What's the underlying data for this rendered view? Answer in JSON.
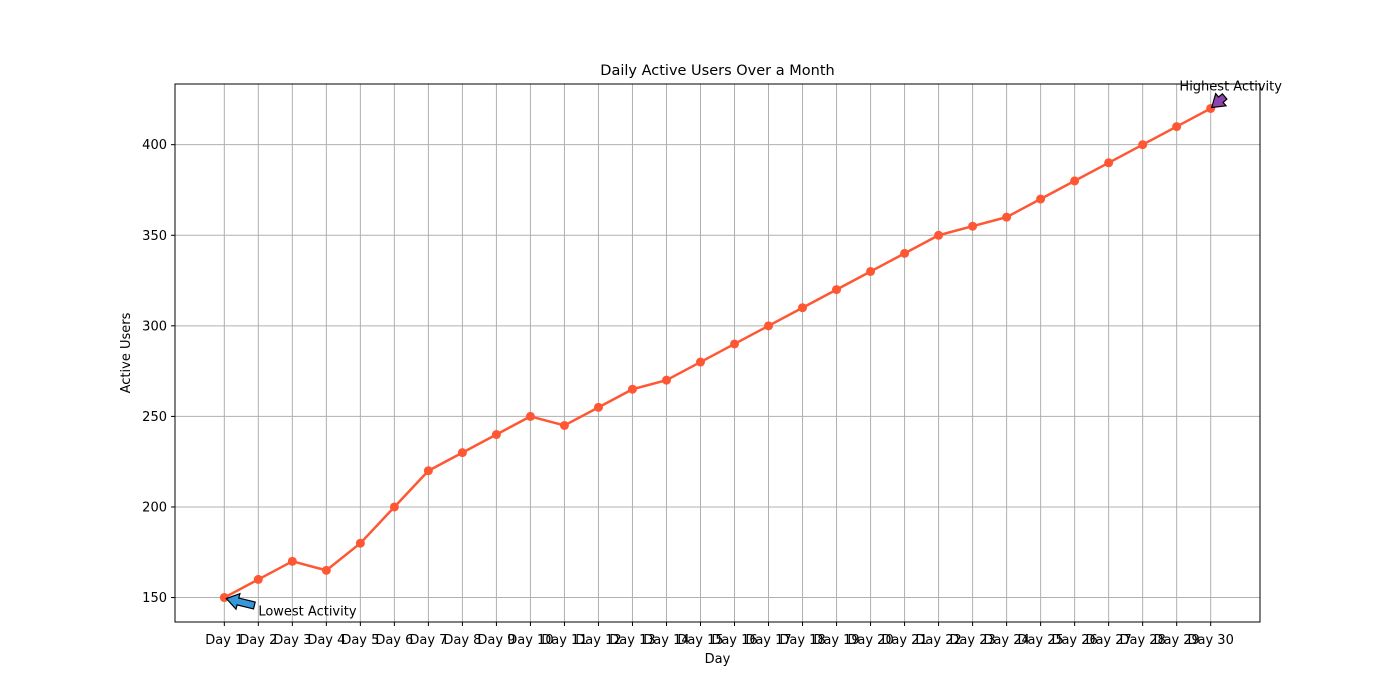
{
  "chart_data": {
    "type": "line",
    "title": "Daily Active Users Over a Month",
    "xlabel": "Day",
    "ylabel": "Active Users",
    "categories": [
      "Day 1",
      "Day 2",
      "Day 3",
      "Day 4",
      "Day 5",
      "Day 6",
      "Day 7",
      "Day 8",
      "Day 9",
      "Day 10",
      "Day 11",
      "Day 12",
      "Day 13",
      "Day 14",
      "Day 15",
      "Day 16",
      "Day 17",
      "Day 18",
      "Day 19",
      "Day 20",
      "Day 21",
      "Day 22",
      "Day 23",
      "Day 24",
      "Day 25",
      "Day 26",
      "Day 27",
      "Day 28",
      "Day 29",
      "Day 30"
    ],
    "series": [
      {
        "values": [
          150,
          160,
          170,
          165,
          180,
          200,
          220,
          230,
          240,
          250,
          245,
          255,
          265,
          270,
          280,
          290,
          300,
          310,
          320,
          330,
          340,
          350,
          355,
          360,
          370,
          380,
          390,
          400,
          410,
          420
        ],
        "color": "#ff5733"
      }
    ],
    "ylim": [
      136.5,
      433.5
    ],
    "yticks": [
      150,
      200,
      250,
      300,
      350,
      400
    ],
    "grid": true,
    "annotations": [
      {
        "text": "Lowest Activity",
        "category": "Day 1",
        "value": 150,
        "arrow_color": "#3498db"
      },
      {
        "text": "Highest Activity",
        "category": "Day 30",
        "value": 420,
        "arrow_color": "#8e44ad"
      }
    ]
  }
}
